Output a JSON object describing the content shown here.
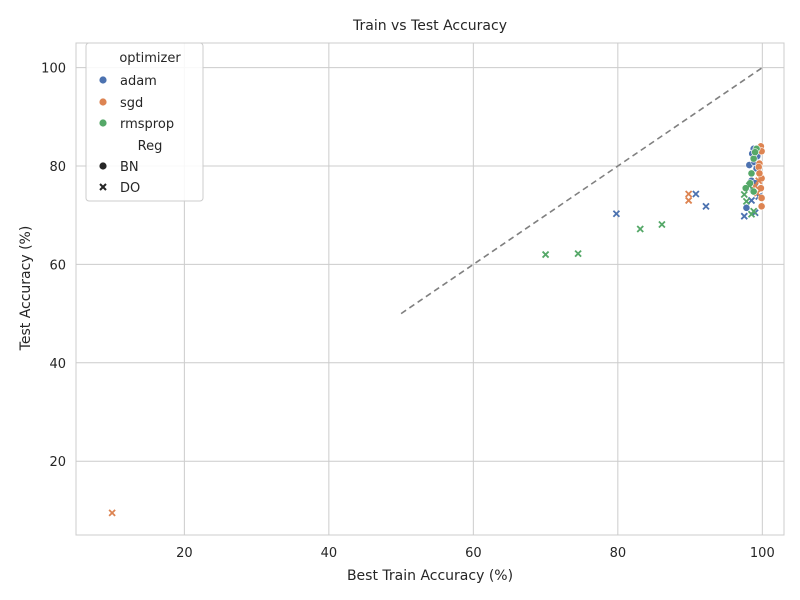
{
  "chart_data": {
    "type": "scatter",
    "title": "Train vs Test Accuracy",
    "xlabel": "Best Train Accuracy (%)",
    "ylabel": "Test Accuracy (%)",
    "xlim": [
      5,
      103
    ],
    "ylim": [
      5,
      105
    ],
    "xticks": [
      20,
      40,
      60,
      80,
      100
    ],
    "yticks": [
      20,
      40,
      60,
      80,
      100
    ],
    "grid": true,
    "legend_position": "top-left",
    "reference_line": {
      "from": [
        50,
        50
      ],
      "to": [
        100,
        100
      ],
      "color": "#808080",
      "style": "dashed"
    },
    "legend": {
      "hue_title": "optimizer",
      "style_title": "Reg",
      "hue_entries": [
        "adam",
        "sgd",
        "rmsprop"
      ],
      "style_entries": [
        {
          "label": "BN",
          "marker": "circle"
        },
        {
          "label": "DO",
          "marker": "x"
        }
      ]
    },
    "colors": {
      "adam": "#4c72b0",
      "sgd": "#dd8452",
      "rmsprop": "#55a868"
    },
    "series": [
      {
        "optimizer": "adam",
        "reg": "BN",
        "points": [
          [
            98.8,
            83.5
          ],
          [
            98.6,
            82.5
          ],
          [
            98.2,
            80.2
          ],
          [
            98.9,
            80.8
          ],
          [
            99.2,
            79.5
          ],
          [
            98.5,
            77.0
          ],
          [
            99.0,
            76.5
          ],
          [
            98.7,
            75.0
          ],
          [
            97.8,
            71.5
          ],
          [
            99.3,
            82.0
          ]
        ]
      },
      {
        "optimizer": "adam",
        "reg": "DO",
        "points": [
          [
            79.8,
            70.3
          ],
          [
            90.8,
            74.3
          ],
          [
            92.2,
            71.8
          ],
          [
            97.5,
            69.8
          ],
          [
            99.0,
            70.5
          ],
          [
            98.5,
            73.0
          ],
          [
            99.5,
            73.8
          ]
        ]
      },
      {
        "optimizer": "sgd",
        "reg": "BN",
        "points": [
          [
            99.8,
            84.0
          ],
          [
            99.9,
            83.0
          ],
          [
            99.6,
            80.5
          ],
          [
            99.5,
            79.8
          ],
          [
            99.9,
            77.5
          ],
          [
            99.8,
            75.5
          ],
          [
            99.9,
            73.5
          ],
          [
            99.9,
            71.8
          ],
          [
            99.6,
            78.5
          ]
        ]
      },
      {
        "optimizer": "sgd",
        "reg": "DO",
        "points": [
          [
            10.0,
            9.5
          ],
          [
            89.8,
            74.3
          ],
          [
            89.8,
            73.0
          ],
          [
            99.5,
            77.0
          ],
          [
            99.0,
            76.0
          ],
          [
            99.3,
            74.5
          ]
        ]
      },
      {
        "optimizer": "rmsprop",
        "reg": "BN",
        "points": [
          [
            99.2,
            83.5
          ],
          [
            98.8,
            81.5
          ],
          [
            98.5,
            78.5
          ],
          [
            98.3,
            76.5
          ],
          [
            97.7,
            75.5
          ],
          [
            98.8,
            74.8
          ],
          [
            99.0,
            82.8
          ]
        ]
      },
      {
        "optimizer": "rmsprop",
        "reg": "DO",
        "points": [
          [
            70.0,
            62.0
          ],
          [
            74.5,
            62.2
          ],
          [
            83.1,
            67.2
          ],
          [
            86.1,
            68.1
          ],
          [
            98.5,
            70.2
          ],
          [
            98.8,
            70.8
          ],
          [
            97.8,
            72.8
          ],
          [
            97.5,
            74.2
          ],
          [
            98.2,
            76.0
          ]
        ]
      }
    ]
  }
}
